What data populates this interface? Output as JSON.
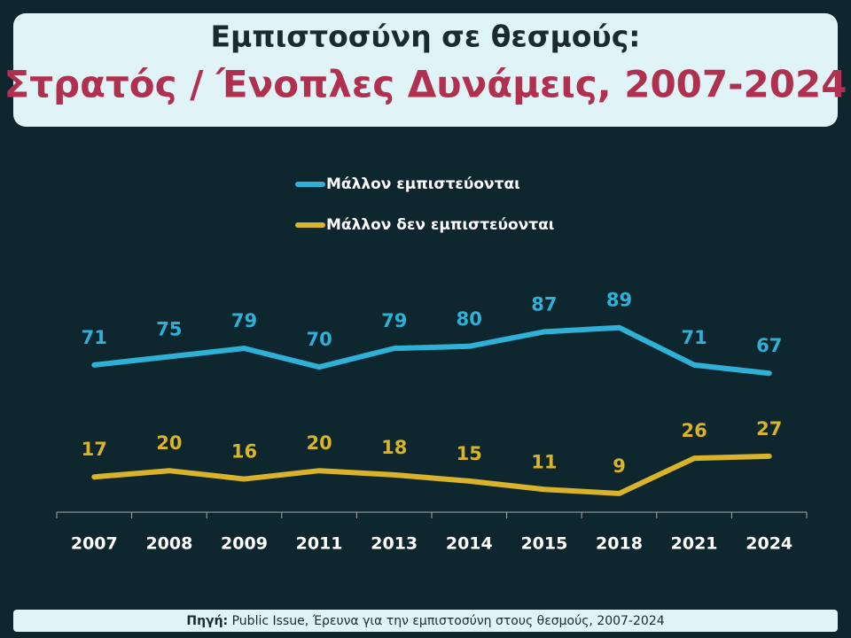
{
  "chart_data": {
    "type": "line",
    "title": "Εμπιστοσύνη σε θεσμούς:",
    "subtitle": "Στρατός / Ένοπλες Δυνάμεις, 2007-2024",
    "categories": [
      "2007",
      "2008",
      "2009",
      "2011",
      "2013",
      "2014",
      "2015",
      "2018",
      "2021",
      "2024"
    ],
    "series": [
      {
        "name": "Μάλλον εμπιστεύονται",
        "color": "#2fb0d6",
        "values": [
          71,
          75,
          79,
          70,
          79,
          80,
          87,
          89,
          71,
          67
        ]
      },
      {
        "name": "Μάλλον δεν εμπιστεύονται",
        "color": "#d9b42a",
        "values": [
          17,
          20,
          16,
          20,
          18,
          15,
          11,
          9,
          26,
          27
        ]
      }
    ],
    "ylim": [
      0,
      100
    ],
    "source": {
      "label": "Πηγή:",
      "text": "Public Issue, Έρευνα για την εμπιστοσύνη στους θεσμούς, 2007-2024"
    }
  }
}
